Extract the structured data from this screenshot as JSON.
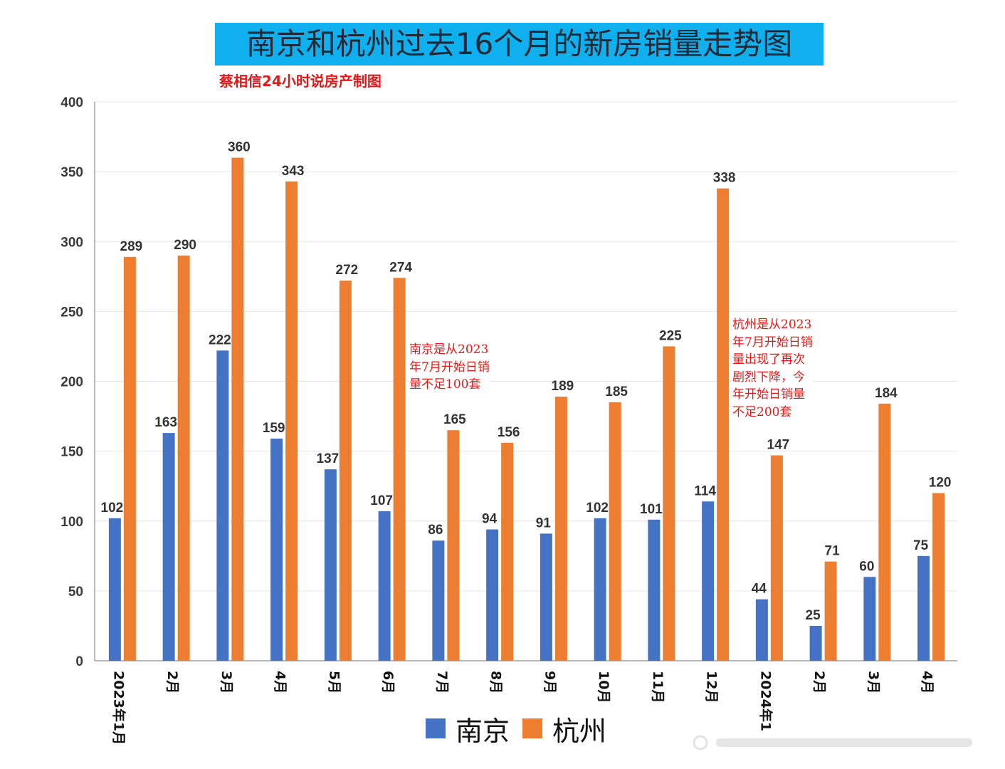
{
  "title": "南京和杭州过去16个月的新房销量走势图",
  "subtitle": "蔡相信24小时说房产制图",
  "chart_data": {
    "type": "bar",
    "title": "南京和杭州过去16个月的新房销量走势图",
    "xlabel": "",
    "ylabel": "",
    "ylim": [
      0,
      400
    ],
    "yticks": [
      0,
      50,
      100,
      150,
      200,
      250,
      300,
      350,
      400
    ],
    "grid": true,
    "legend_position": "bottom",
    "categories": [
      "2023年1月",
      "2月",
      "3月",
      "4月",
      "5月",
      "6月",
      "7月",
      "8月",
      "9月",
      "10月",
      "11月",
      "12月",
      "2024年1",
      "2月",
      "3月",
      "4月"
    ],
    "series": [
      {
        "name": "南京",
        "color": "#4472c4",
        "values": [
          102,
          163,
          222,
          159,
          137,
          107,
          86,
          94,
          91,
          102,
          101,
          114,
          44,
          25,
          60,
          75
        ]
      },
      {
        "name": "杭州",
        "color": "#ed7d31",
        "values": [
          289,
          290,
          360,
          343,
          272,
          274,
          165,
          156,
          189,
          185,
          225,
          338,
          147,
          71,
          184,
          120
        ]
      }
    ],
    "annotations": [
      "南京是从2023\n年7月开始日销\n量不足100套",
      "杭州是从2023\n年7月开始日销\n量出现了再次\n剧烈下降，今\n年开始日销量\n不足200套"
    ]
  },
  "legend": {
    "items": [
      {
        "label": "南京",
        "color": "#4472c4"
      },
      {
        "label": "杭州",
        "color": "#ed7d31"
      }
    ]
  },
  "colors": {
    "title_bg": "#10b0ef",
    "note": "#e81818",
    "grid": "#e6e6e6"
  }
}
